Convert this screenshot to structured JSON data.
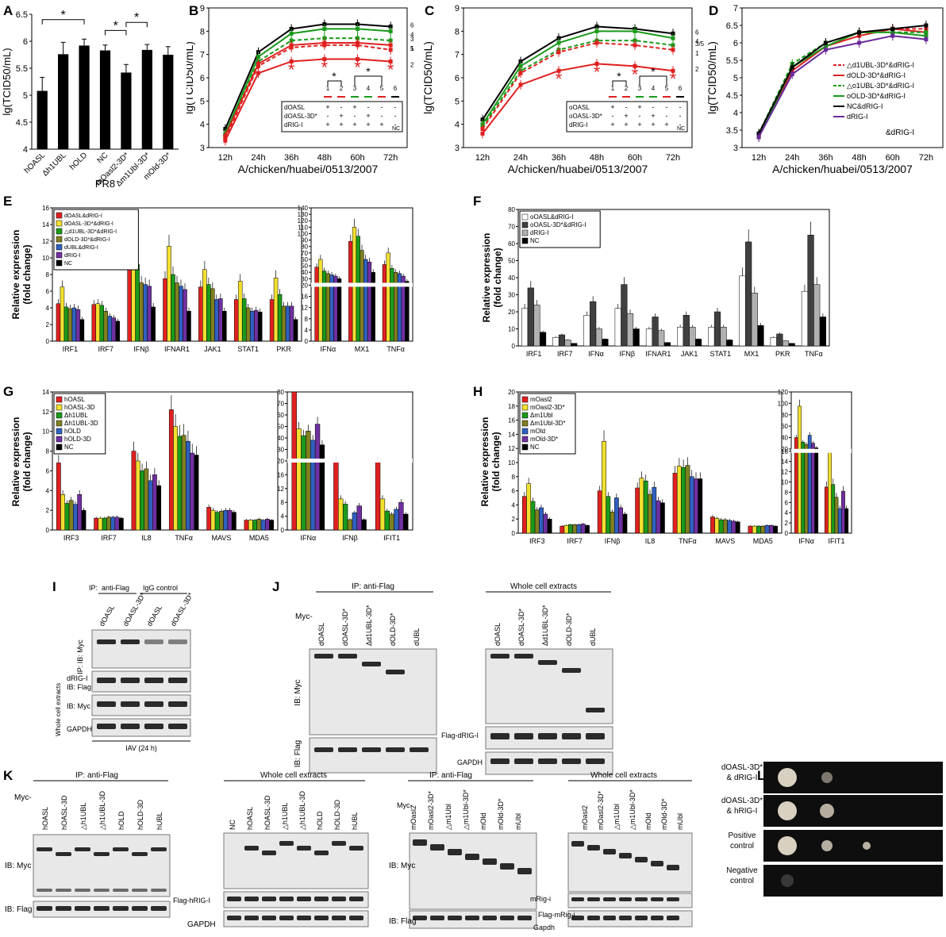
{
  "panel_labels": [
    "A",
    "B",
    "C",
    "D",
    "E",
    "F",
    "G",
    "H",
    "I",
    "J",
    "K",
    "L"
  ],
  "chart_data": [
    {
      "id": "A",
      "type": "bar",
      "title": "",
      "xlabel": "PR8",
      "ylabel": "lg(TCID50/mL)",
      "ylim": [
        4,
        6.5
      ],
      "yticks": [
        "4",
        "4.5",
        "5",
        "5.5",
        "6",
        "6.5"
      ],
      "categories": [
        "hOASL",
        "Δh1UBL",
        "hOLD",
        "NC",
        "mOasl2-3D*",
        "Δm1Ubl-3D*",
        "mOld-3D*"
      ],
      "values": [
        5.08,
        5.76,
        5.92,
        5.83,
        5.42,
        5.84,
        5.75
      ],
      "errors": [
        0.25,
        0.22,
        0.12,
        0.1,
        0.15,
        0.1,
        0.15
      ],
      "sig": [
        "*",
        "*",
        "*"
      ]
    },
    {
      "id": "B",
      "type": "line",
      "xlabel": "A/chicken/huabei/0513/2007",
      "ylabel": "lg(TCID50/mL)",
      "ylim": [
        3,
        9
      ],
      "yticks": [
        "3",
        "4",
        "5",
        "6",
        "7",
        "8",
        "9"
      ],
      "x": [
        "12h",
        "24h",
        "36h",
        "48h",
        "60h",
        "72h"
      ],
      "series": [
        {
          "name": "6",
          "color": "#000000",
          "dash": false,
          "values": [
            3.8,
            7.1,
            8.1,
            8.3,
            8.3,
            8.2
          ]
        },
        {
          "name": "4",
          "color": "#1a9a1a",
          "dash": false,
          "values": [
            3.6,
            6.9,
            7.9,
            8.1,
            8.1,
            8.0
          ]
        },
        {
          "name": "3",
          "color": "#1a9a1a",
          "dash": true,
          "values": [
            3.5,
            6.7,
            7.6,
            7.7,
            7.7,
            7.6
          ]
        },
        {
          "name": "5",
          "color": "#e02020",
          "dash": false,
          "values": [
            3.5,
            6.6,
            7.4,
            7.5,
            7.5,
            7.4
          ]
        },
        {
          "name": "1",
          "color": "#e02020",
          "dash": true,
          "values": [
            3.4,
            6.5,
            7.3,
            7.4,
            7.4,
            7.2
          ]
        },
        {
          "name": "2",
          "color": "#e02020",
          "dash": false,
          "values": [
            3.3,
            6.2,
            6.7,
            6.8,
            6.8,
            6.7
          ]
        }
      ],
      "legend_rows": [
        "dOASL",
        "dOASL-3D*",
        "dRIG-I"
      ],
      "legend_marks": [
        [
          "+",
          "-",
          "+",
          "-",
          "-",
          "-"
        ],
        [
          "-",
          "+",
          "-",
          "+",
          "-",
          "-"
        ],
        [
          "+",
          "+",
          "+",
          "+",
          "+",
          "-"
        ]
      ],
      "legend_nc": "NC",
      "col_nums": [
        "1",
        "2",
        "3",
        "4",
        "5",
        "6"
      ]
    },
    {
      "id": "C",
      "type": "line",
      "xlabel": "A/chicken/huabei/0513/2007",
      "ylabel": "lg(TCID50/mL)",
      "ylim": [
        3,
        9
      ],
      "yticks": [
        "3",
        "4",
        "5",
        "6",
        "7",
        "8",
        "9"
      ],
      "x": [
        "12h",
        "24h",
        "36h",
        "48h",
        "60h",
        "72h"
      ],
      "series": [
        {
          "name": "6",
          "color": "#000000",
          "dash": false,
          "values": [
            4.2,
            6.7,
            7.7,
            8.2,
            8.1,
            7.9
          ]
        },
        {
          "name": "4",
          "color": "#1a9a1a",
          "dash": false,
          "values": [
            4.0,
            6.5,
            7.5,
            8.0,
            8.0,
            7.7
          ]
        },
        {
          "name": "3/5",
          "color": "#1a9a1a",
          "dash": true,
          "values": [
            3.9,
            6.3,
            7.2,
            7.6,
            7.6,
            7.4
          ]
        },
        {
          "name": "1",
          "color": "#e02020",
          "dash": true,
          "values": [
            3.8,
            6.2,
            7.1,
            7.5,
            7.4,
            7.2
          ]
        },
        {
          "name": "2",
          "color": "#e02020",
          "dash": false,
          "values": [
            3.6,
            5.7,
            6.3,
            6.6,
            6.5,
            6.3
          ]
        }
      ],
      "legend_rows": [
        "oOASL",
        "oOASL-3D*",
        "dRIG-I"
      ],
      "legend_marks": [
        [
          "+",
          "-",
          "+",
          "-",
          "-",
          "-"
        ],
        [
          "-",
          "+",
          "-",
          "+",
          "-",
          "-"
        ],
        [
          "+",
          "+",
          "+",
          "+",
          "+",
          "-"
        ]
      ],
      "legend_nc": "NC",
      "col_nums": [
        "1",
        "2",
        "3",
        "4",
        "5",
        "6"
      ]
    },
    {
      "id": "D",
      "type": "line",
      "xlabel": "A/chicken/huabei/0513/2007",
      "ylabel": "lg(TCID50/mL)",
      "ylim": [
        3,
        7
      ],
      "yticks": [
        "3",
        "3.5",
        "4",
        "4.5",
        "5",
        "5.5",
        "6",
        "6.5",
        "7"
      ],
      "x": [
        "12h",
        "24h",
        "36h",
        "48h",
        "60h",
        "72h"
      ],
      "series": [
        {
          "name": "△d1UBL-3D*&dRIG-I",
          "color": "#e02020",
          "dash": true,
          "values": [
            3.4,
            5.3,
            5.9,
            6.3,
            6.4,
            6.4
          ]
        },
        {
          "name": "dOLD-3D*&dRIG-I",
          "color": "#e02020",
          "dash": false,
          "values": [
            3.3,
            5.2,
            5.9,
            6.2,
            6.4,
            6.3
          ]
        },
        {
          "name": "△o1UBL-3D*&dRIG-I",
          "color": "#1a9a1a",
          "dash": true,
          "values": [
            3.4,
            5.4,
            6.0,
            6.3,
            6.3,
            6.3
          ]
        },
        {
          "name": "oOLD-3D*&dRIG-I",
          "color": "#1a9a1a",
          "dash": false,
          "values": [
            3.3,
            5.3,
            5.9,
            6.3,
            6.3,
            6.2
          ]
        },
        {
          "name": "NC&dRIG-I",
          "color": "#000000",
          "dash": false,
          "values": [
            3.4,
            5.3,
            6.0,
            6.3,
            6.4,
            6.5
          ]
        },
        {
          "name": "dRIG-I",
          "color": "#6a2a9a",
          "dash": false,
          "values": [
            3.3,
            5.1,
            5.8,
            6.0,
            6.2,
            6.1
          ]
        }
      ],
      "note": "&dRIG-I"
    },
    {
      "id": "E",
      "type": "bar",
      "ylabel": "Relative expression\n(fold change)",
      "groups_left": [
        "IRF1",
        "IRF7",
        "IFNβ",
        "IFNAR1",
        "JAK1",
        "STAT1",
        "PKR"
      ],
      "groups_right": [
        "IFNα",
        "MX1",
        "TNFα"
      ],
      "series": [
        "dOASL&dRIG-I",
        "dOASL-3D*&dRIG-I",
        "△d1UBL-3D*&dRIG-I",
        "dOLD-3D*&dRIG-I",
        "dUBL&dRIG-I",
        "dRIG-I",
        "NC"
      ],
      "colors": [
        "#e02020",
        "#f2e030",
        "#1a9a1a",
        "#808020",
        "#3060c0",
        "#7030a0",
        "#000000"
      ],
      "yticks_left": [
        "0",
        "2",
        "4",
        "6",
        "8",
        "10",
        "12",
        "14",
        "16"
      ],
      "yticks_right": [
        "0",
        "4",
        "8",
        "12",
        "16",
        "20",
        "30",
        "40",
        "50",
        "60",
        "70",
        "80",
        "90",
        "100",
        "110",
        "120",
        "130",
        "140"
      ],
      "values_left": [
        [
          4.5,
          6.5,
          4.1,
          3.9,
          4,
          3.8,
          2.6
        ],
        [
          4.4,
          4.5,
          4.3,
          3.6,
          3,
          2.8,
          2.4
        ],
        [
          8.8,
          13.2,
          9.2,
          7,
          6.8,
          6.6,
          4.1
        ],
        [
          7.5,
          11.4,
          8,
          7,
          6.6,
          6.2,
          3.6
        ],
        [
          6.5,
          8.6,
          6.8,
          6.3,
          5,
          5.1,
          3.6
        ],
        [
          5,
          7.2,
          5.1,
          4,
          3.6,
          3.7,
          3.5
        ],
        [
          5,
          7.6,
          5.6,
          4.2,
          4.2,
          4.2,
          2.6
        ]
      ],
      "values_right": [
        [
          48,
          60,
          42,
          38,
          36,
          34,
          30
        ],
        [
          88,
          110,
          96,
          74,
          60,
          56,
          40
        ],
        [
          52,
          70,
          46,
          40,
          38,
          34,
          26
        ]
      ]
    },
    {
      "id": "F",
      "type": "bar",
      "ylabel": "Relative expression\n(fold change)",
      "groups": [
        "IRF1",
        "IRF7",
        "IFNα",
        "IFNβ",
        "IFNAR1",
        "JAK1",
        "STAT1",
        "MX1",
        "PKR",
        "TNFα"
      ],
      "series": [
        "oOASL&dRIG-I",
        "oOASL-3D*&dRIG-I",
        "dRIG-I",
        "NC"
      ],
      "colors": [
        "#ffffff",
        "#404040",
        "#b0b0b0",
        "#000000"
      ],
      "yticks": [
        "0",
        "10",
        "20",
        "30",
        "40",
        "50",
        "60",
        "70",
        "80"
      ],
      "values": [
        [
          22,
          34,
          24,
          8
        ],
        [
          5,
          6.5,
          3.5,
          1.5
        ],
        [
          18,
          26,
          10,
          4
        ],
        [
          22,
          36,
          19,
          10
        ],
        [
          10,
          17,
          9,
          2
        ],
        [
          11,
          18,
          11,
          4
        ],
        [
          11,
          20,
          11,
          3.5
        ],
        [
          41,
          61,
          31,
          12
        ],
        [
          5,
          7,
          3,
          1.5
        ],
        [
          32,
          65,
          36,
          17
        ]
      ]
    },
    {
      "id": "G",
      "type": "bar",
      "ylabel": "Relative expression\n(fold change)",
      "groups_left": [
        "IRF3",
        "IRF7",
        "IL8",
        "TNFα",
        "MAVS",
        "MDA5"
      ],
      "groups_right": [
        "IFNα",
        "IFNβ",
        "IFIT1"
      ],
      "series": [
        "hOASL",
        "hOASL-3D",
        "Δh1UBL",
        "Δh1UBL-3D",
        "hOLD",
        "hOLD-3D",
        "NC"
      ],
      "colors": [
        "#e02020",
        "#f2e030",
        "#1a9a1a",
        "#808020",
        "#3060c0",
        "#7030a0",
        "#000000"
      ],
      "yticks_left": [
        "0",
        "2",
        "4",
        "6",
        "8",
        "10",
        "12",
        "14"
      ],
      "yticks_right": [
        "0",
        "4",
        "8",
        "12",
        "16",
        "20",
        "30",
        "40",
        "50",
        "60",
        "70",
        "80"
      ],
      "values_left": [
        [
          6.8,
          3.6,
          2.7,
          3,
          2.6,
          3.6,
          2
        ],
        [
          1.2,
          1.2,
          1.2,
          1.3,
          1.3,
          1.3,
          1.2
        ],
        [
          8,
          7,
          6,
          6.2,
          5,
          5.6,
          4.5
        ],
        [
          12.2,
          10.5,
          9.5,
          9.6,
          9,
          7.8,
          7.6
        ],
        [
          2.3,
          2,
          1.8,
          1.9,
          2,
          2,
          1.8
        ],
        [
          1,
          1,
          1,
          1.1,
          1,
          1.1,
          1
        ]
      ],
      "values_right": [
        [
          80,
          48,
          42,
          46,
          38,
          52,
          34
        ],
        [
          20,
          9,
          7.5,
          3,
          5,
          7,
          3
        ],
        [
          20,
          9,
          5.5,
          4.6,
          6,
          8,
          4.6
        ]
      ]
    },
    {
      "id": "H",
      "type": "bar",
      "ylabel": "Relative expression\n(fold change)",
      "groups_left": [
        "IRF3",
        "IRF7",
        "IFNβ",
        "IL8",
        "TNFα",
        "MAVS",
        "MDA5"
      ],
      "groups_right": [
        "IFNα",
        "IFIT1"
      ],
      "series": [
        "mOasl2",
        "mOasl2-3D*",
        "Δm1Ubl",
        "Δm1Ubl-3D*",
        "mOld",
        "mOld-3D*",
        "NC"
      ],
      "colors": [
        "#e02020",
        "#f2e030",
        "#1a9a1a",
        "#808020",
        "#3060c0",
        "#7030a0",
        "#000000"
      ],
      "yticks_left": [
        "0",
        "2",
        "4",
        "6",
        "8",
        "10",
        "12",
        "14",
        "16",
        "18",
        "20"
      ],
      "yticks_right": [
        "0",
        "2",
        "4",
        "6",
        "8",
        "10",
        "12",
        "14",
        "16",
        "20",
        "40",
        "60",
        "80",
        "100",
        "120"
      ],
      "values_left": [
        [
          5.2,
          7,
          4.5,
          3.3,
          3.6,
          2.7,
          2
        ],
        [
          1,
          1.1,
          1.2,
          1.2,
          1.2,
          1.3,
          1.1
        ],
        [
          6,
          13,
          5.2,
          3,
          5,
          3.6,
          2.7
        ],
        [
          6.4,
          7.8,
          7.4,
          5.5,
          6.5,
          4.6,
          4.3
        ],
        [
          8.5,
          9.5,
          9.3,
          9.6,
          8,
          7.7,
          7.7
        ],
        [
          2.3,
          2.1,
          1.9,
          1.9,
          1.8,
          1.7,
          1.6
        ],
        [
          1,
          1,
          1,
          1,
          1.1,
          1.1,
          1
        ]
      ],
      "values_right": [
        [
          40,
          95,
          32,
          28,
          44,
          30,
          22
        ],
        [
          9,
          18,
          9.5,
          7,
          4.8,
          8.2,
          4.8
        ]
      ]
    }
  ],
  "blots": {
    "I": {
      "ip_label": "IP:",
      "ip_flag": "anti-Flag",
      "ip_igg": "IgG control",
      "lanes": [
        "dOASL",
        "dOASL-3D*",
        "dOASL",
        "dOASL-3D*"
      ],
      "rows": [
        "IP: IB: Myc",
        "dRIG-I",
        "IB: Flag",
        "IB: Myc",
        "GAPDH"
      ],
      "side": "Whole cell extracts",
      "footer": "IAV (24 h)"
    },
    "J": {
      "ip": "IP: anti-Flag",
      "wce": "Whole cell extracts",
      "myc": "Myc-",
      "lanes": [
        "dOASL",
        "dOASL-3D*",
        "Δd1UBL-3D*",
        "dOLD-3D*",
        "dUBL"
      ],
      "ib_myc": "IB: Myc",
      "ib_flag": "IB: Flag",
      "flag_rig": "Flag-dRIG-I",
      "gapdh": "GAPDH"
    },
    "K": {
      "ip": "IP: anti-Flag",
      "wce": "Whole cell extracts",
      "myc": "Myc-",
      "lanes_h": [
        "hOASL",
        "hOASL-3D",
        "△h1UBL",
        "△h1UBL-3D",
        "hOLD",
        "hOLD-3D",
        "hUBL"
      ],
      "lanes_hw": [
        "NC",
        "hOASL",
        "hOASL-3D",
        "△h1UBL",
        "△h1UBL-3D",
        "hOLD",
        "hOLD-3D",
        "hUBL"
      ],
      "lanes_m": [
        "mOasl2",
        "mOasl2-3D*",
        "△m1Ubl",
        "△m1Ubl-3D*",
        "mOld",
        "mOld-3D*",
        "mUbl"
      ],
      "ib_myc": "IB: Myc",
      "ib_flag": "IB: Flag",
      "flag_h": "Flag-hRIG-I",
      "flag_m": "Flag-mRig-i",
      "gapdh": "GAPDH",
      "gapdh_m": "Gapdh",
      "mrig": "mRig-i"
    },
    "L": {
      "rows": [
        "dOASL-3D*\n& dRIG-I",
        "dOASL-3D*\n& hRIG-I",
        "Positive\ncontrol",
        "Negative\ncontrol"
      ]
    }
  }
}
